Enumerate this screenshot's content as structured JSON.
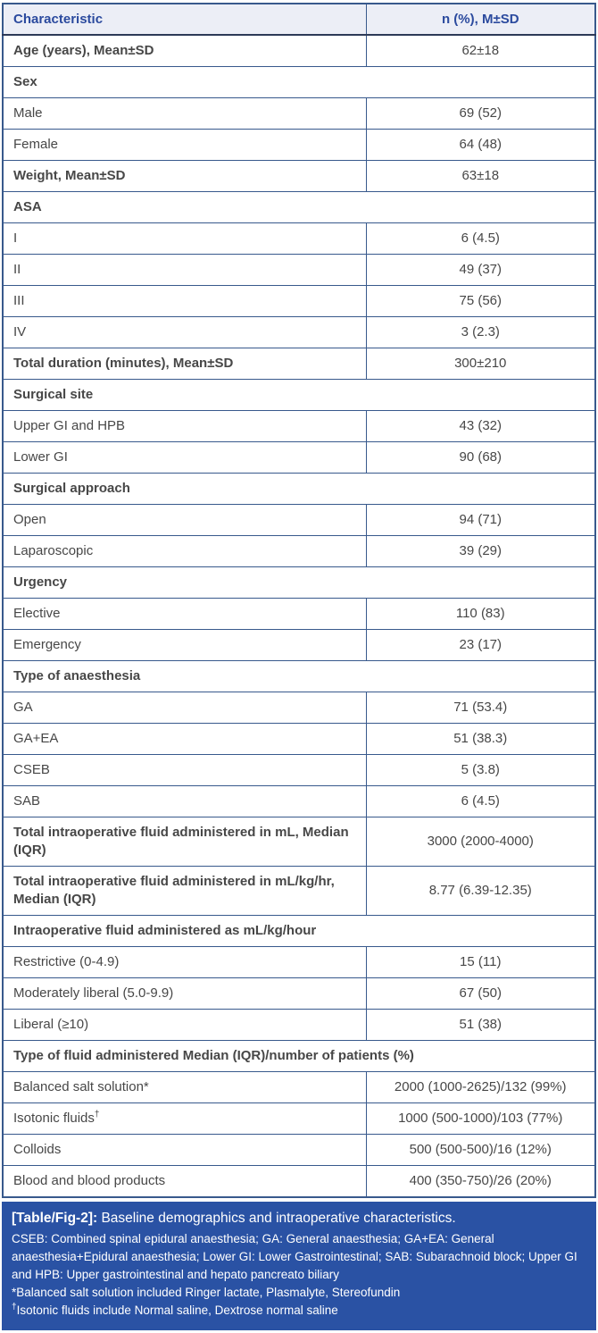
{
  "colors": {
    "table_border": "#38598c",
    "header_background": "#eceef6",
    "header_text": "#2b4a9e",
    "header_underline": "#2d3a57",
    "body_text": "#474747",
    "caption_background": "#2a52a4",
    "caption_text": "#ffffff"
  },
  "table": {
    "header": {
      "characteristic": "Characteristic",
      "value": "n (%), M±SD"
    },
    "rows": [
      {
        "type": "data",
        "label": "Age (years), Mean±SD",
        "value": "62±18",
        "bold": true
      },
      {
        "type": "section",
        "label": "Sex"
      },
      {
        "type": "data",
        "label": "Male",
        "value": "69 (52)"
      },
      {
        "type": "data",
        "label": "Female",
        "value": "64 (48)"
      },
      {
        "type": "data",
        "label": "Weight, Mean±SD",
        "value": "63±18",
        "bold": true
      },
      {
        "type": "section",
        "label": "ASA"
      },
      {
        "type": "data",
        "label": "I",
        "value": "6 (4.5)"
      },
      {
        "type": "data",
        "label": "II",
        "value": "49 (37)"
      },
      {
        "type": "data",
        "label": "III",
        "value": "75 (56)"
      },
      {
        "type": "data",
        "label": "IV",
        "value": "3 (2.3)"
      },
      {
        "type": "data",
        "label": "Total duration (minutes), Mean±SD",
        "value": "300±210",
        "bold": true
      },
      {
        "type": "section",
        "label": "Surgical site"
      },
      {
        "type": "data",
        "label": "Upper GI and HPB",
        "value": "43 (32)"
      },
      {
        "type": "data",
        "label": "Lower GI",
        "value": "90 (68)"
      },
      {
        "type": "section",
        "label": "Surgical approach"
      },
      {
        "type": "data",
        "label": "Open",
        "value": "94 (71)"
      },
      {
        "type": "data",
        "label": "Laparoscopic",
        "value": "39 (29)"
      },
      {
        "type": "section",
        "label": "Urgency"
      },
      {
        "type": "data",
        "label": "Elective",
        "value": "110 (83)"
      },
      {
        "type": "data",
        "label": "Emergency",
        "value": "23 (17)"
      },
      {
        "type": "section",
        "label": "Type of anaesthesia"
      },
      {
        "type": "data",
        "label": "GA",
        "value": "71 (53.4)"
      },
      {
        "type": "data",
        "label": "GA+EA",
        "value": "51 (38.3)"
      },
      {
        "type": "data",
        "label": "CSEB",
        "value": "5 (3.8)"
      },
      {
        "type": "data",
        "label": "SAB",
        "value": "6 (4.5)"
      },
      {
        "type": "data",
        "label": "Total intraoperative fluid administered in mL, Median (IQR)",
        "value": "3000 (2000-4000)",
        "bold": true
      },
      {
        "type": "data",
        "label": "Total intraoperative fluid administered in mL/kg/hr, Median (IQR)",
        "value": "8.77 (6.39-12.35)",
        "bold": true
      },
      {
        "type": "section",
        "label": "Intraoperative fluid administered as mL/kg/hour"
      },
      {
        "type": "data",
        "label": "Restrictive (0-4.9)",
        "value": "15 (11)"
      },
      {
        "type": "data",
        "label": "Moderately liberal (5.0-9.9)",
        "value": "67 (50)"
      },
      {
        "type": "data",
        "label": "Liberal (≥10)",
        "value": "51 (38)"
      },
      {
        "type": "section",
        "label": "Type of fluid administered Median (IQR)/number of patients (%)"
      },
      {
        "type": "data",
        "label": "Balanced salt solution*",
        "value": "2000 (1000-2625)/132 (99%)"
      },
      {
        "type": "data",
        "label": "Isotonic fluids",
        "sup": "†",
        "value": "1000 (500-1000)/103 (77%)"
      },
      {
        "type": "data",
        "label": "Colloids",
        "value": "500 (500-500)/16 (12%)"
      },
      {
        "type": "data",
        "label": "Blood and blood products",
        "value": "400 (350-750)/26 (20%)"
      }
    ]
  },
  "caption": {
    "tag": "[Table/Fig-2]:",
    "title": "Baseline demographics and intraoperative characteristics.",
    "abbreviations": "CSEB: Combined spinal epidural anaesthesia; GA: General anaesthesia; GA+EA: General anaesthesia+Epidural anaesthesia; Lower GI: Lower Gastrointestinal; SAB: Subarachnoid block; Upper GI and HPB: Upper gastrointestinal and hepato pancreato biliary",
    "footnote_star": "*Balanced salt solution included Ringer lactate, Plasmalyte, Stereofundin",
    "dagger": "†",
    "footnote_dagger": "Isotonic fluids include Normal saline, Dextrose normal saline"
  }
}
